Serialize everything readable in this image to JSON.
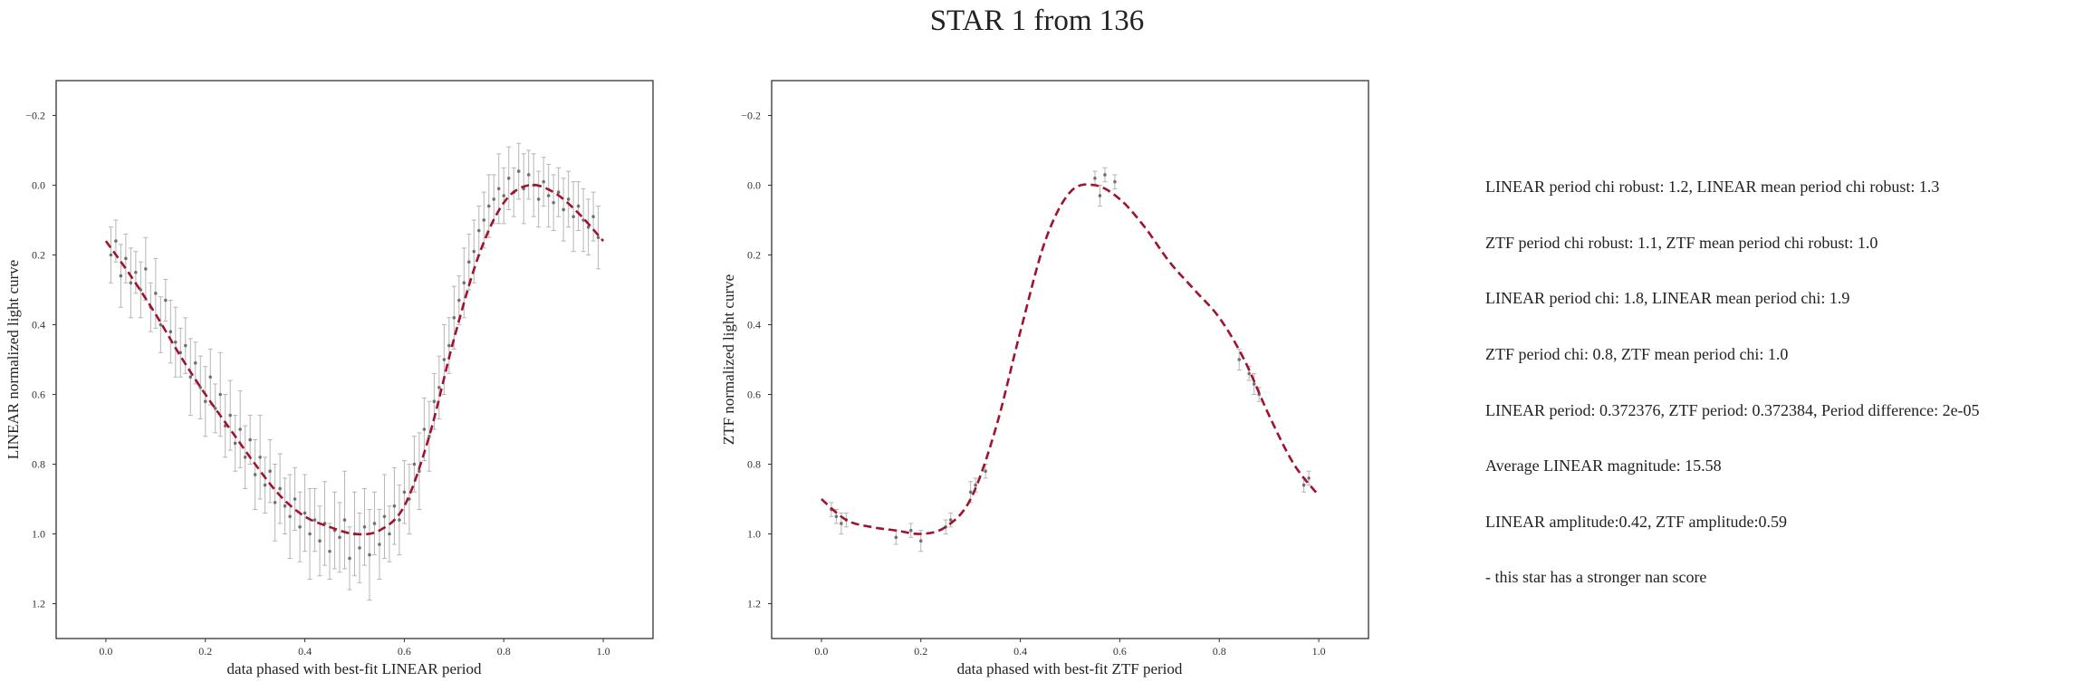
{
  "title": "STAR 1 from 136",
  "colors": {
    "fit": "#a0122d",
    "points": "#555555",
    "errorbars": "#b5b5b5",
    "frame": "#333333"
  },
  "info_lines": [
    "LINEAR period chi robust: 1.2, LINEAR mean period chi robust: 1.3",
    "ZTF period chi robust: 1.1, ZTF mean period chi robust: 1.0",
    "LINEAR period chi: 1.8, LINEAR mean period chi: 1.9",
    "ZTF period chi: 0.8, ZTF mean period chi: 1.0",
    "LINEAR period: 0.372376, ZTF period: 0.372384, Period difference: 2e-05",
    "Average LINEAR magnitude: 15.58",
    "LINEAR amplitude:0.42, ZTF amplitude:0.59",
    "- this star has a stronger nan score"
  ],
  "chart_data": [
    {
      "type": "scatter",
      "xlabel": "data phased with best-fit LINEAR period",
      "ylabel": "LINEAR normalized light curve",
      "xlim": [
        -0.1,
        1.1
      ],
      "ylim": [
        1.3,
        -0.3
      ],
      "y_inverted": true,
      "grid": false,
      "xticks": [
        0.0,
        0.2,
        0.4,
        0.6,
        0.8,
        1.0
      ],
      "xtick_labels": [
        "0.0",
        "0.2",
        "0.4",
        "0.6",
        "0.8",
        "1.0"
      ],
      "yticks": [
        -0.2,
        0.0,
        0.2,
        0.4,
        0.6,
        0.8,
        1.0,
        1.2
      ],
      "ytick_labels": [
        "−0.2",
        "0.0",
        "0.2",
        "0.4",
        "0.6",
        "0.8",
        "1.0",
        "1.2"
      ],
      "fit": {
        "x": [
          0.0,
          0.05,
          0.1,
          0.15,
          0.2,
          0.25,
          0.3,
          0.35,
          0.4,
          0.45,
          0.5,
          0.55,
          0.6,
          0.65,
          0.7,
          0.75,
          0.8,
          0.85,
          0.9,
          0.95,
          1.0
        ],
        "y": [
          0.16,
          0.26,
          0.37,
          0.49,
          0.6,
          0.7,
          0.8,
          0.89,
          0.95,
          0.98,
          1.0,
          0.99,
          0.92,
          0.72,
          0.44,
          0.2,
          0.05,
          0.0,
          0.02,
          0.08,
          0.16
        ]
      },
      "points": {
        "x": [
          0.01,
          0.02,
          0.03,
          0.04,
          0.05,
          0.06,
          0.07,
          0.08,
          0.09,
          0.1,
          0.11,
          0.12,
          0.13,
          0.14,
          0.15,
          0.16,
          0.17,
          0.18,
          0.19,
          0.2,
          0.21,
          0.22,
          0.23,
          0.24,
          0.25,
          0.26,
          0.27,
          0.28,
          0.29,
          0.3,
          0.31,
          0.32,
          0.33,
          0.34,
          0.35,
          0.36,
          0.37,
          0.38,
          0.39,
          0.4,
          0.41,
          0.42,
          0.43,
          0.44,
          0.45,
          0.46,
          0.47,
          0.48,
          0.49,
          0.5,
          0.51,
          0.52,
          0.53,
          0.54,
          0.55,
          0.56,
          0.57,
          0.58,
          0.59,
          0.6,
          0.61,
          0.62,
          0.63,
          0.64,
          0.65,
          0.66,
          0.67,
          0.68,
          0.69,
          0.7,
          0.71,
          0.72,
          0.73,
          0.74,
          0.75,
          0.76,
          0.77,
          0.78,
          0.79,
          0.8,
          0.81,
          0.82,
          0.83,
          0.84,
          0.85,
          0.86,
          0.87,
          0.88,
          0.89,
          0.9,
          0.91,
          0.92,
          0.93,
          0.94,
          0.95,
          0.96,
          0.97,
          0.98,
          0.99
        ],
        "y": [
          0.2,
          0.16,
          0.26,
          0.21,
          0.28,
          0.25,
          0.3,
          0.24,
          0.35,
          0.31,
          0.4,
          0.33,
          0.42,
          0.45,
          0.48,
          0.46,
          0.55,
          0.51,
          0.58,
          0.62,
          0.55,
          0.64,
          0.6,
          0.69,
          0.66,
          0.74,
          0.7,
          0.78,
          0.73,
          0.83,
          0.78,
          0.86,
          0.82,
          0.91,
          0.87,
          0.92,
          0.95,
          0.9,
          0.98,
          0.94,
          1.0,
          0.96,
          1.02,
          0.97,
          1.05,
          0.99,
          1.01,
          0.96,
          1.07,
          1.0,
          1.04,
          0.98,
          1.06,
          0.97,
          1.03,
          0.95,
          1.0,
          0.92,
          0.96,
          0.88,
          0.9,
          0.8,
          0.82,
          0.7,
          0.72,
          0.62,
          0.58,
          0.5,
          0.46,
          0.38,
          0.33,
          0.28,
          0.22,
          0.19,
          0.13,
          0.1,
          0.06,
          0.04,
          0.01,
          0.03,
          -0.02,
          0.02,
          -0.04,
          0.01,
          -0.03,
          0.0,
          0.04,
          -0.01,
          0.03,
          0.05,
          0.02,
          0.07,
          0.04,
          0.09,
          0.06,
          0.1,
          0.12,
          0.09,
          0.15
        ],
        "yerr": [
          0.08,
          0.06,
          0.09,
          0.07,
          0.1,
          0.06,
          0.08,
          0.09,
          0.07,
          0.1,
          0.08,
          0.06,
          0.09,
          0.1,
          0.07,
          0.08,
          0.11,
          0.06,
          0.09,
          0.1,
          0.08,
          0.07,
          0.12,
          0.09,
          0.1,
          0.08,
          0.11,
          0.09,
          0.07,
          0.1,
          0.12,
          0.08,
          0.09,
          0.11,
          0.1,
          0.08,
          0.12,
          0.09,
          0.1,
          0.11,
          0.13,
          0.09,
          0.1,
          0.12,
          0.08,
          0.11,
          0.1,
          0.14,
          0.09,
          0.12,
          0.1,
          0.11,
          0.13,
          0.09,
          0.1,
          0.12,
          0.08,
          0.11,
          0.1,
          0.09,
          0.1,
          0.08,
          0.11,
          0.09,
          0.1,
          0.08,
          0.09,
          0.1,
          0.08,
          0.09,
          0.07,
          0.1,
          0.08,
          0.09,
          0.07,
          0.08,
          0.09,
          0.07,
          0.1,
          0.08,
          0.09,
          0.07,
          0.08,
          0.1,
          0.07,
          0.09,
          0.08,
          0.07,
          0.09,
          0.08,
          0.07,
          0.09,
          0.08,
          0.1,
          0.07,
          0.09,
          0.08,
          0.07,
          0.09
        ]
      }
    },
    {
      "type": "scatter",
      "xlabel": "data phased with best-fit ZTF period",
      "ylabel": "ZTF normalized light curve",
      "xlim": [
        -0.1,
        1.1
      ],
      "ylim": [
        1.3,
        -0.3
      ],
      "y_inverted": true,
      "grid": false,
      "xticks": [
        0.0,
        0.2,
        0.4,
        0.6,
        0.8,
        1.0
      ],
      "xtick_labels": [
        "0.0",
        "0.2",
        "0.4",
        "0.6",
        "0.8",
        "1.0"
      ],
      "yticks": [
        -0.2,
        0.0,
        0.2,
        0.4,
        0.6,
        0.8,
        1.0,
        1.2
      ],
      "ytick_labels": [
        "−0.2",
        "0.0",
        "0.2",
        "0.4",
        "0.6",
        "0.8",
        "1.0",
        "1.2"
      ],
      "fit": {
        "x": [
          0.0,
          0.05,
          0.1,
          0.15,
          0.2,
          0.25,
          0.3,
          0.35,
          0.4,
          0.45,
          0.5,
          0.55,
          0.6,
          0.65,
          0.7,
          0.75,
          0.8,
          0.85,
          0.9,
          0.95,
          1.0
        ],
        "y": [
          0.9,
          0.96,
          0.98,
          0.99,
          1.0,
          0.98,
          0.9,
          0.7,
          0.42,
          0.16,
          0.02,
          0.0,
          0.04,
          0.12,
          0.22,
          0.3,
          0.38,
          0.5,
          0.66,
          0.8,
          0.89
        ]
      },
      "points": {
        "x": [
          0.02,
          0.03,
          0.04,
          0.05,
          0.15,
          0.18,
          0.2,
          0.25,
          0.26,
          0.3,
          0.31,
          0.33,
          0.55,
          0.56,
          0.57,
          0.59,
          0.84,
          0.86,
          0.87,
          0.88,
          0.97,
          0.98
        ],
        "y": [
          0.93,
          0.95,
          0.97,
          0.96,
          1.01,
          0.99,
          1.02,
          0.98,
          0.96,
          0.88,
          0.86,
          0.82,
          -0.02,
          0.03,
          -0.03,
          -0.01,
          0.5,
          0.54,
          0.57,
          0.6,
          0.86,
          0.84
        ],
        "yerr": [
          0.02,
          0.02,
          0.03,
          0.02,
          0.02,
          0.02,
          0.03,
          0.02,
          0.02,
          0.03,
          0.02,
          0.02,
          0.02,
          0.03,
          0.02,
          0.02,
          0.03,
          0.02,
          0.03,
          0.02,
          0.02,
          0.02
        ]
      }
    }
  ]
}
